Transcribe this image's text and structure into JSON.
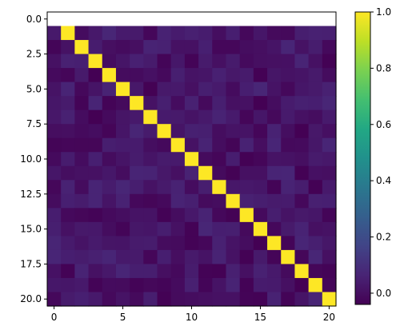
{
  "chart_data": {
    "type": "heatmap",
    "title": "",
    "xlabel": "",
    "ylabel": "",
    "rows": 21,
    "cols": 21,
    "x_extent": [
      -0.5,
      20.5
    ],
    "y_extent": [
      20.5,
      -0.5
    ],
    "x_ticks": [
      0,
      5,
      10,
      15,
      20
    ],
    "x_tick_labels": [
      "0",
      "5",
      "10",
      "15",
      "20"
    ],
    "y_ticks": [
      0.0,
      2.5,
      5.0,
      7.5,
      10.0,
      12.5,
      15.0,
      17.5,
      20.0
    ],
    "y_tick_labels": [
      "0.0",
      "2.5",
      "5.0",
      "7.5",
      "10.0",
      "12.5",
      "15.0",
      "17.5",
      "20.0"
    ],
    "first_row_values": "white",
    "diagonal": {
      "start_row": 1,
      "start_col": 1,
      "value": 1.0
    },
    "off_diagonal_range": [
      -0.04,
      0.07
    ],
    "colorbar": {
      "colormap": "viridis",
      "range": [
        -0.04,
        1.0
      ],
      "ticks": [
        0.0,
        0.2,
        0.4,
        0.6,
        0.8,
        1.0
      ],
      "tick_labels": [
        "0.0",
        "0.2",
        "0.4",
        "0.6",
        "0.8",
        "1.0"
      ]
    },
    "grid": false,
    "legend": "colorbar-right"
  }
}
